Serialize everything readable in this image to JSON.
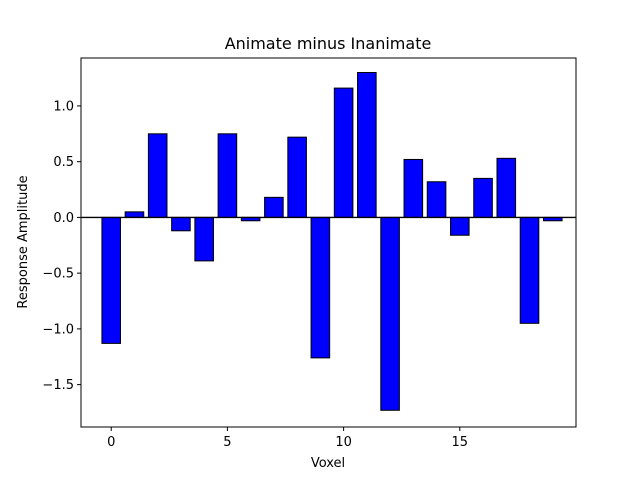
{
  "chart_data": {
    "type": "bar",
    "title": "Animate minus Inanimate",
    "xlabel": "Voxel",
    "ylabel": "Response Amplitude",
    "x": [
      0,
      1,
      2,
      3,
      4,
      5,
      6,
      7,
      8,
      9,
      10,
      11,
      12,
      13,
      14,
      15,
      16,
      17,
      18,
      19
    ],
    "values": [
      -1.13,
      0.05,
      0.75,
      -0.12,
      -0.39,
      0.75,
      -0.03,
      0.18,
      0.72,
      -1.26,
      1.16,
      1.3,
      -1.73,
      0.52,
      0.32,
      -0.16,
      0.35,
      0.53,
      -0.95,
      -0.03
    ],
    "xlim": [
      -1.3,
      20.0
    ],
    "ylim": [
      -1.88,
      1.43
    ],
    "xticks": [
      0,
      5,
      10,
      15
    ],
    "xtick_labels": [
      "0",
      "5",
      "10",
      "15"
    ],
    "yticks": [
      -1.5,
      -1.0,
      -0.5,
      0.0,
      0.5,
      1.0
    ],
    "ytick_labels": [
      "−1.5",
      "−1.0",
      "−0.5",
      "0.0",
      "0.5",
      "1.0"
    ],
    "bar_color": "#0000ff",
    "edge_color": "#000000",
    "zero_line": true,
    "grid": false,
    "legend": "none"
  }
}
